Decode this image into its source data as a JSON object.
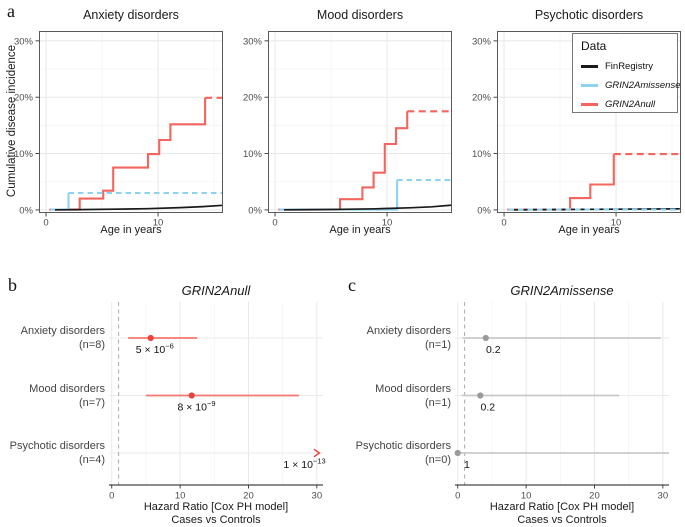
{
  "figure": {
    "tags": {
      "a": "a",
      "b": "b",
      "c": "c"
    },
    "ylabel_a": "Cumulative disease incidence"
  },
  "legend": {
    "title": "Data",
    "items": [
      {
        "label": "FinRegistry",
        "color": "#1a1a1a",
        "italic": false
      },
      {
        "label": "GRIN2Amissense",
        "color": "#8dd2ee",
        "italic": true
      },
      {
        "label": "GRIN2Anull",
        "color": "#f4655f",
        "italic": true
      }
    ]
  },
  "chart_data": [
    {
      "type": "line",
      "panel": "a",
      "title": "Anxiety disorders",
      "xlabel": "Age in years",
      "ylabel": "Cumulative disease incidence",
      "xlim": [
        -0.63,
        15.8
      ],
      "ylim": [
        -0.55,
        31.75
      ],
      "x_ticks": [
        0,
        10
      ],
      "x_tick_labels": [
        "0",
        "10"
      ],
      "x_minor": [
        5,
        15
      ],
      "y_ticks": [
        0,
        10,
        20,
        30
      ],
      "y_tick_labels": [
        "0%",
        "10%",
        "20%",
        "30%"
      ],
      "y_minor": [
        5,
        15,
        25
      ],
      "series": [
        {
          "name": "GRIN2Anull",
          "color": "#f4655f",
          "width": 2.1,
          "dash": "7 4.5",
          "solid": [
            [
              0.3,
              0.05
            ],
            [
              3,
              0.05
            ],
            [
              3,
              2
            ],
            [
              5.1,
              2
            ],
            [
              5.1,
              3.4
            ],
            [
              6,
              3.4
            ],
            [
              6,
              7.5
            ],
            [
              9.1,
              7.5
            ],
            [
              9.1,
              9.9
            ],
            [
              10.1,
              9.9
            ],
            [
              10.1,
              12.4
            ],
            [
              11.1,
              12.4
            ],
            [
              11.1,
              15.2
            ],
            [
              14.2,
              15.2
            ],
            [
              14.2,
              19.9
            ]
          ],
          "dashed": [
            [
              14.2,
              19.9
            ],
            [
              15.8,
              19.9
            ]
          ]
        },
        {
          "name": "GRIN2Amissense",
          "color": "#8dd2ee",
          "width": 2.1,
          "dash": "5.5 4",
          "solid": [
            [
              0.4,
              0.05
            ],
            [
              2,
              0.05
            ],
            [
              2,
              3
            ]
          ],
          "dashed": [
            [
              2,
              3
            ],
            [
              15.8,
              3
            ]
          ]
        },
        {
          "name": "FinRegistry",
          "color": "#1a1a1a",
          "width": 1.7,
          "solid": [
            [
              0.8,
              0.02
            ],
            [
              3,
              0.06
            ],
            [
              6,
              0.12
            ],
            [
              9,
              0.22
            ],
            [
              12,
              0.4
            ],
            [
              14,
              0.58
            ],
            [
              15.8,
              0.82
            ]
          ]
        }
      ]
    },
    {
      "type": "line",
      "panel": "a",
      "title": "Mood disorders",
      "xlabel": "Age in years",
      "xlim": [
        -0.63,
        15.8
      ],
      "ylim": [
        -0.55,
        31.75
      ],
      "x_ticks": [
        0,
        10
      ],
      "x_tick_labels": [
        "0",
        "10"
      ],
      "x_minor": [
        5,
        15
      ],
      "y_ticks": [
        0,
        10,
        20,
        30
      ],
      "y_tick_labels": [
        "0%",
        "10%",
        "20%",
        "30%"
      ],
      "y_minor": [
        5,
        15,
        25
      ],
      "series": [
        {
          "name": "GRIN2Anull",
          "color": "#f4655f",
          "width": 2.1,
          "dash": "7 4.5",
          "solid": [
            [
              0.3,
              0.05
            ],
            [
              5.8,
              0.05
            ],
            [
              5.8,
              1.9
            ],
            [
              7.8,
              1.9
            ],
            [
              7.8,
              4.0
            ],
            [
              8.8,
              4.0
            ],
            [
              8.8,
              6.6
            ],
            [
              9.8,
              6.6
            ],
            [
              9.8,
              11.7
            ],
            [
              10.8,
              11.7
            ],
            [
              10.8,
              14.5
            ],
            [
              11.8,
              14.5
            ],
            [
              11.8,
              17.5
            ]
          ],
          "dashed": [
            [
              11.8,
              17.5
            ],
            [
              15.8,
              17.5
            ]
          ]
        },
        {
          "name": "GRIN2Amissense",
          "color": "#8dd2ee",
          "width": 2.1,
          "dash": "5.5 4",
          "solid": [
            [
              0.4,
              0.05
            ],
            [
              10.9,
              0.05
            ],
            [
              10.9,
              5.3
            ]
          ],
          "dashed": [
            [
              10.9,
              5.3
            ],
            [
              15.8,
              5.3
            ]
          ]
        },
        {
          "name": "FinRegistry",
          "color": "#1a1a1a",
          "width": 1.7,
          "solid": [
            [
              0.8,
              0.02
            ],
            [
              3,
              0.05
            ],
            [
              6,
              0.1
            ],
            [
              9,
              0.2
            ],
            [
              12,
              0.38
            ],
            [
              14,
              0.55
            ],
            [
              15.8,
              0.85
            ]
          ]
        }
      ]
    },
    {
      "type": "line",
      "panel": "a",
      "title": "Psychotic disorders",
      "xlabel": "Age in years",
      "xlim": [
        -0.63,
        15.8
      ],
      "ylim": [
        -0.55,
        31.75
      ],
      "x_ticks": [
        0,
        10
      ],
      "x_tick_labels": [
        "0",
        "10"
      ],
      "x_minor": [
        5,
        15
      ],
      "y_ticks": [
        0,
        10,
        20,
        30
      ],
      "y_tick_labels": [
        "0%",
        "10%",
        "20%",
        "30%"
      ],
      "y_minor": [
        5,
        15,
        25
      ],
      "series": [
        {
          "name": "GRIN2Anull",
          "color": "#f4655f",
          "width": 2.1,
          "dash": "7 4.5",
          "solid": [
            [
              0.3,
              0.05
            ],
            [
              5.9,
              0.05
            ],
            [
              5.9,
              2.1
            ],
            [
              7.7,
              2.1
            ],
            [
              7.7,
              4.5
            ],
            [
              9.8,
              4.5
            ],
            [
              9.8,
              9.9
            ]
          ],
          "dashed": [
            [
              9.8,
              9.9
            ],
            [
              15.8,
              9.9
            ]
          ]
        },
        {
          "name": "FinRegistry",
          "color": "#1a1a1a",
          "width": 1.7,
          "solid": [
            [
              0.8,
              0.02
            ],
            [
              5,
              0.08
            ],
            [
              10,
              0.12
            ],
            [
              13,
              0.16
            ],
            [
              15.8,
              0.2
            ]
          ]
        },
        {
          "name": "GRIN2Amissense",
          "color": "#8dd2ee",
          "width": 2.1,
          "dash": "5.5 4",
          "dashed": [
            [
              0.4,
              0.05
            ],
            [
              15.8,
              0.05
            ]
          ]
        }
      ]
    },
    {
      "type": "forest",
      "panel": "b",
      "title": "GRIN2Anull",
      "xlim": [
        -0.4,
        30.9
      ],
      "ref_line": 1,
      "x_ticks": [
        0,
        10,
        20,
        30
      ],
      "x_tick_labels": [
        "0",
        "10",
        "20",
        "30"
      ],
      "x_minor": [
        5,
        15,
        25
      ],
      "ci_color": "#f8766d",
      "point_color": "#e8433c",
      "xlabel_line1": "Hazard Ratio [Cox PH model]",
      "xlabel_line2": "Cases vs Controls",
      "rows": [
        {
          "label": "Anxiety disorders",
          "n": "(n=8)",
          "hr": 5.7,
          "lo": 2.4,
          "hi": 12.5,
          "p_mantissa": "5 × 10",
          "p_exponent": "−6",
          "label_x": 6.3
        },
        {
          "label": "Mood disorders",
          "n": "(n=7)",
          "hr": 11.7,
          "lo": 5.0,
          "hi": 27.4,
          "p_mantissa": "8 × 10",
          "p_exponent": "−9",
          "label_x": 12.4
        },
        {
          "label": "Psychotic disorders",
          "n": "(n=4)",
          "arrow_x": 30.3,
          "p_mantissa": "1 × 10",
          "p_exponent": "−13",
          "label_x": 28.2
        }
      ]
    },
    {
      "type": "forest",
      "panel": "c",
      "title": "GRIN2Amissense",
      "xlim": [
        -0.4,
        30.9
      ],
      "ref_line": 1,
      "x_ticks": [
        0,
        10,
        20,
        30
      ],
      "x_tick_labels": [
        "0",
        "10",
        "20",
        "30"
      ],
      "x_minor": [
        5,
        15,
        25
      ],
      "ci_color": "#c9c9c9",
      "point_color": "#9a9a9a",
      "xlabel_line1": "Hazard Ratio [Cox PH model]",
      "xlabel_line2": "Cases vs Controls",
      "rows": [
        {
          "label": "Anxiety disorders",
          "n": "(n=1)",
          "hr": 4.1,
          "lo": 0.7,
          "hi": 29.7,
          "p_mantissa": "0.2",
          "p_exponent": "",
          "label_x": 5.2
        },
        {
          "label": "Mood disorders",
          "n": "(n=1)",
          "hr": 3.3,
          "lo": 0.6,
          "hi": 23.6,
          "p_mantissa": "0.2",
          "p_exponent": "",
          "label_x": 4.4
        },
        {
          "label": "Psychotic disorders",
          "n": "(n=0)",
          "hr": 0.0,
          "lo": 0.05,
          "hi": 30.9,
          "p_mantissa": "1",
          "p_exponent": "",
          "label_x": 1.35
        }
      ]
    }
  ]
}
